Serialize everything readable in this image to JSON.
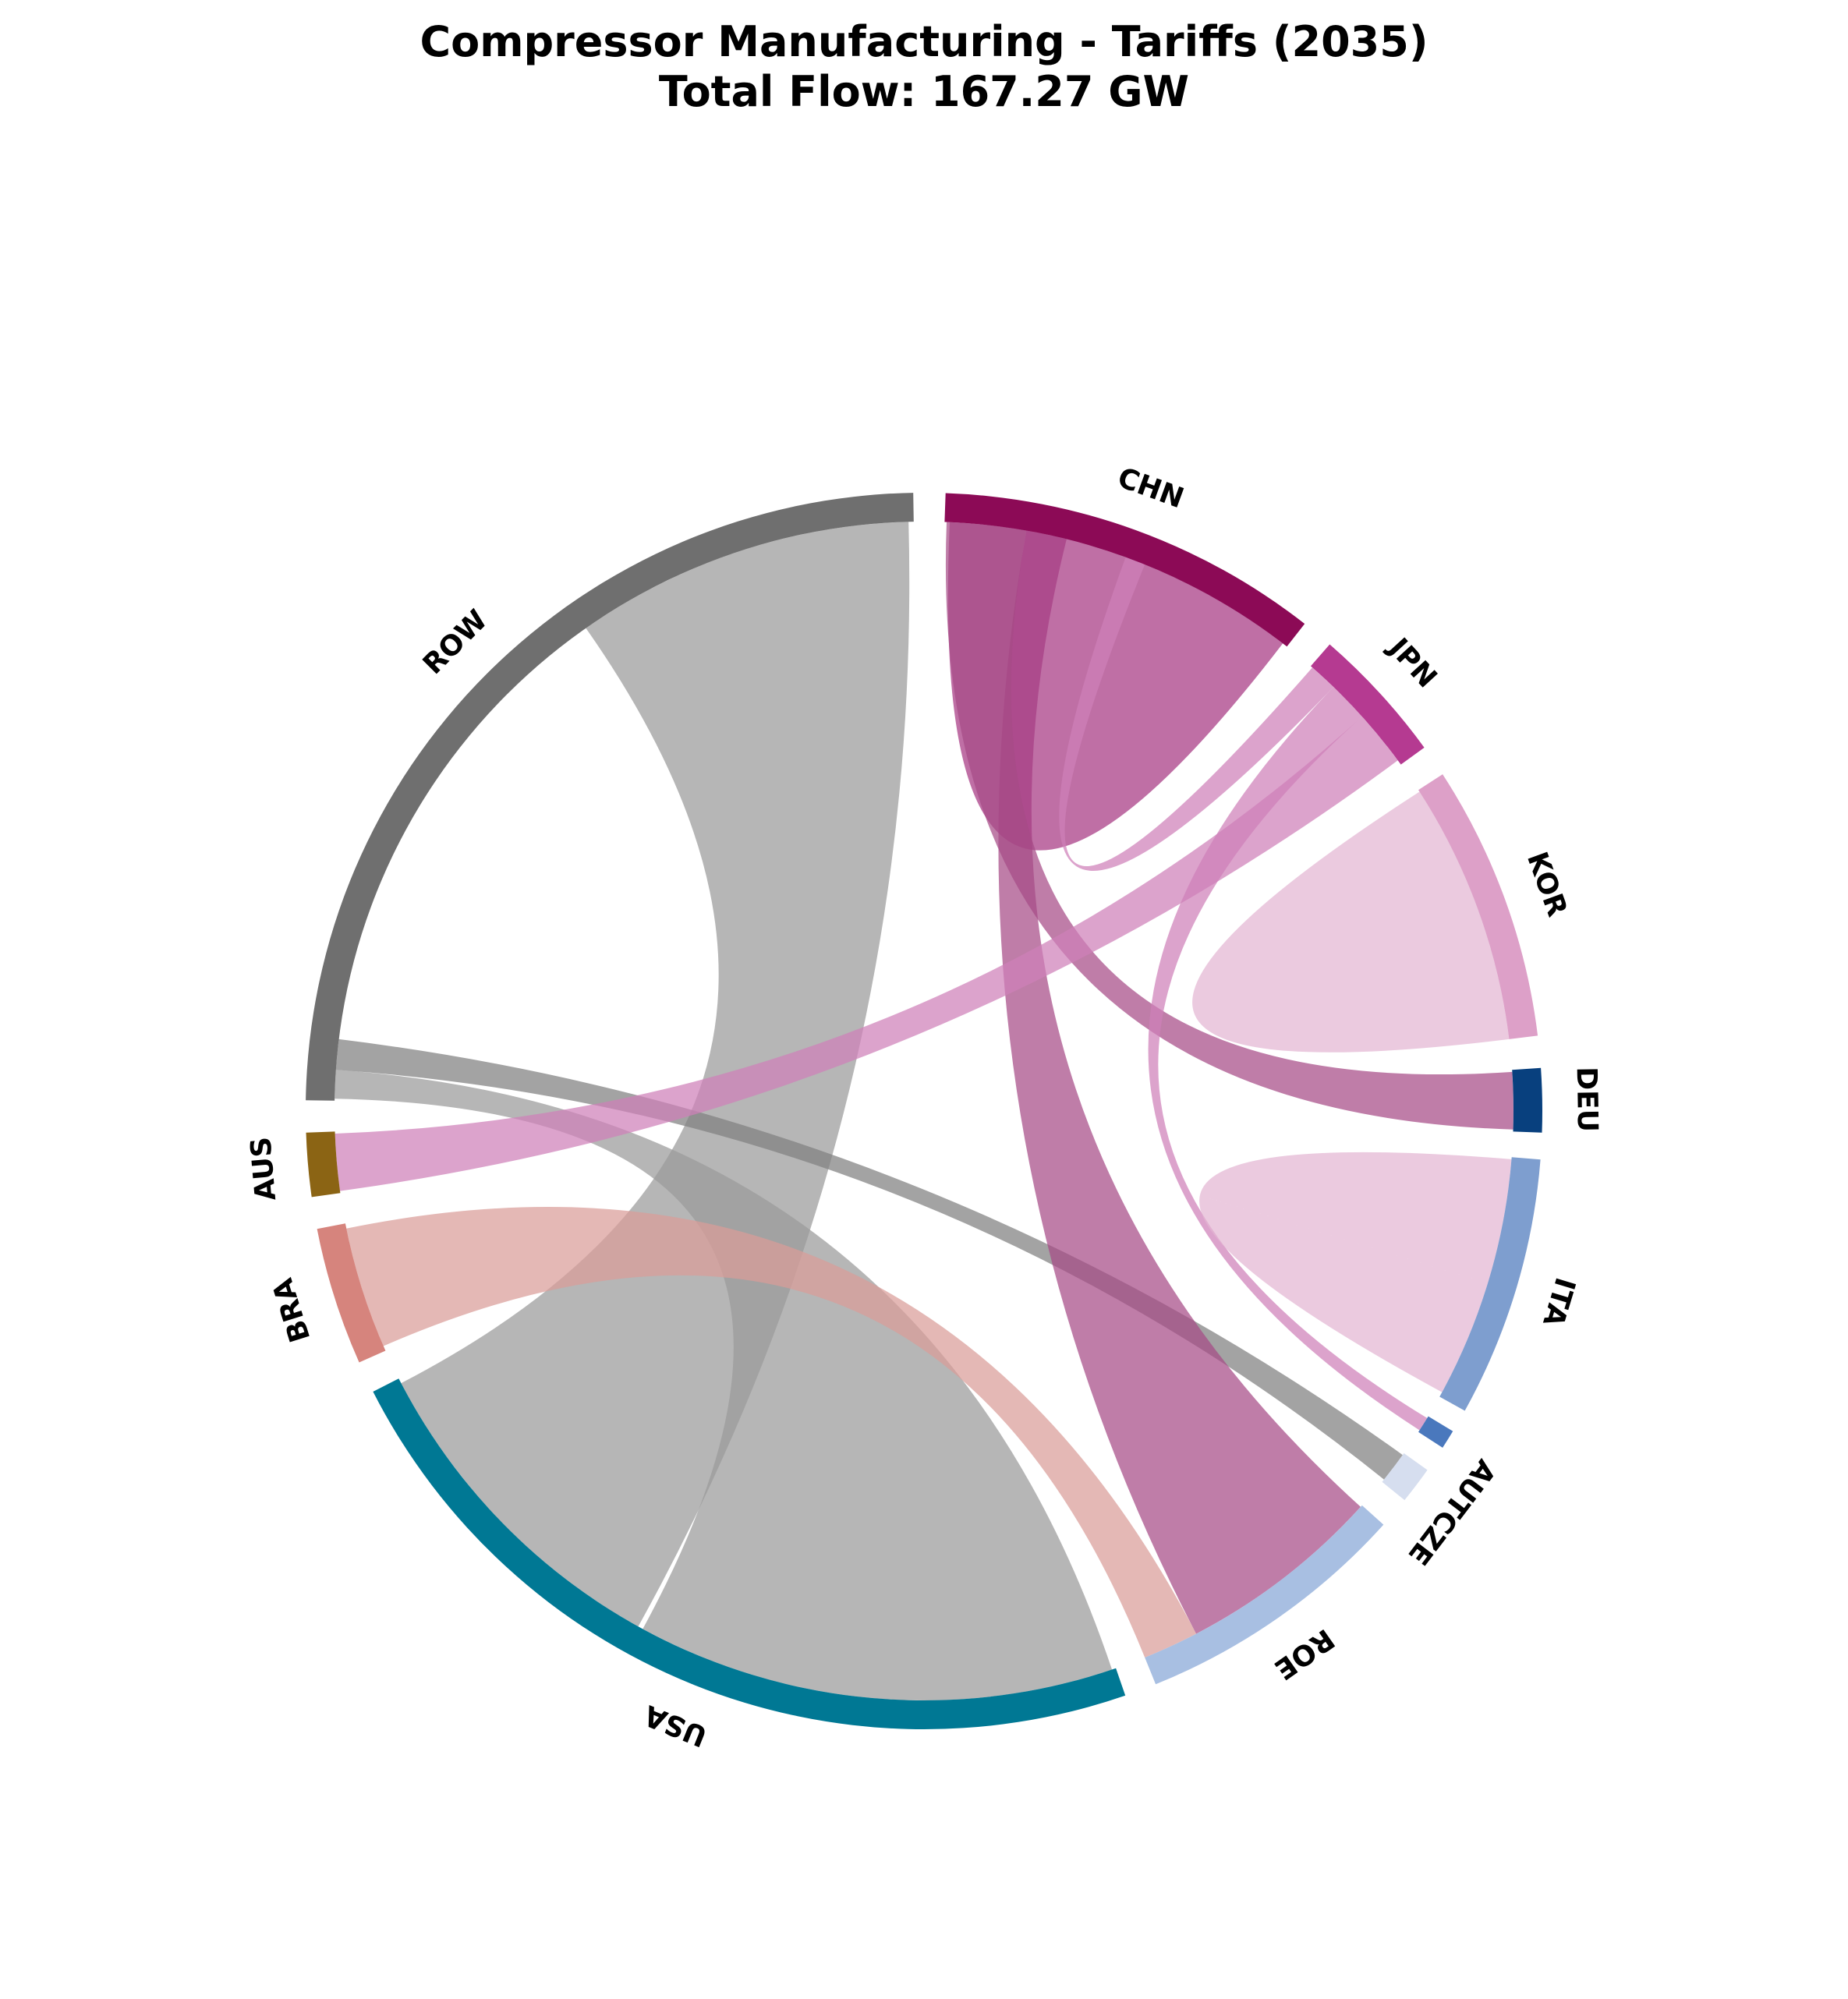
{
  "chart_data": {
    "type": "chord",
    "title": "Compressor Manufacturing - Tariffs (2035)",
    "subtitle": "Total Flow: 167.27 GW",
    "nodes": [
      {
        "id": "ROW",
        "label": "ROW",
        "color": "#6f6f6f",
        "start_deg": 91.0,
        "end_deg": 179.0
      },
      {
        "id": "AUS",
        "label": "AUS",
        "color": "#8b6414",
        "start_deg": 182.0,
        "end_deg": 188.0
      },
      {
        "id": "BRA",
        "label": "BRA",
        "color": "#d6847d",
        "start_deg": 191.0,
        "end_deg": 204.0
      },
      {
        "id": "USA",
        "label": "USA",
        "color": "#007894",
        "start_deg": 207.0,
        "end_deg": 289.0
      },
      {
        "id": "ROE",
        "label": "ROE",
        "color": "#a8bfe2",
        "start_deg": 292.0,
        "end_deg": 318.0
      },
      {
        "id": "AUTCZE",
        "label": "AUTCZE",
        "color": "#d6deef",
        "start_deg": 321.0,
        "end_deg": 324.5
      },
      {
        "id": "ITA2",
        "label": "",
        "color": "#4a78bd",
        "start_deg": 327.0,
        "end_deg": 328.8
      },
      {
        "id": "ITA",
        "label": "ITA",
        "color": "#7e9ecf",
        "start_deg": 331.0,
        "end_deg": 355.5
      },
      {
        "id": "DEU",
        "label": "DEU",
        "color": "#08407e",
        "start_deg": 358.0,
        "end_deg": 364.0
      },
      {
        "id": "KOR",
        "label": "KOR",
        "color": "#dda0c8",
        "start_deg": 367.0,
        "end_deg": 393.0
      },
      {
        "id": "JPN",
        "label": "JPN",
        "color": "#b53a91",
        "start_deg": 396.0,
        "end_deg": 409.0
      },
      {
        "id": "CHN",
        "label": "CHN",
        "color": "#8c0a56",
        "start_deg": 412.0,
        "end_deg": 448.0
      }
    ],
    "flows": [
      {
        "source": "ROW",
        "target": "USA",
        "color": "#9a9a9a",
        "a": [
          91.5,
          125.0
        ],
        "b": [
          207.5,
          241.0
        ]
      },
      {
        "source": "ROW",
        "target": "USA",
        "color": "#9a9a9a",
        "a": [
          176.0,
          178.8
        ],
        "b": [
          241.5,
          288.6
        ]
      },
      {
        "source": "ROW",
        "target": "AUTCZE",
        "color": "#808080",
        "a": [
          173.0,
          176.0
        ],
        "b": [
          321.3,
          324.3
        ]
      },
      {
        "source": "BRA",
        "target": "ROE",
        "color": "#d99c98",
        "a": [
          191.5,
          203.5
        ],
        "b": [
          292.0,
          297.5
        ]
      },
      {
        "source": "CHN",
        "target": "ROE",
        "color": "#a64b87",
        "a": [
          436.0,
          440.0
        ],
        "b": [
          297.5,
          317.8
        ]
      },
      {
        "source": "CHN",
        "target": "CHN",
        "color": "#a63782",
        "a": [
          412.5,
          428.0
        ],
        "b": [
          428.0,
          447.5
        ]
      },
      {
        "source": "CHN",
        "target": "DEU",
        "color": "#a64b87",
        "a": [
          440.0,
          447.8
        ],
        "b": [
          358.2,
          363.8
        ]
      },
      {
        "source": "JPN",
        "target": "AUS",
        "color": "#cf7fb8",
        "a": [
          396.5,
          402.0
        ],
        "b": [
          182.2,
          187.8
        ]
      },
      {
        "source": "JPN",
        "target": "ITA2",
        "color": "#cf7fb8",
        "a": [
          402.0,
          406.0
        ],
        "b": [
          327.2,
          328.6
        ]
      },
      {
        "source": "JPN",
        "target": "CHN",
        "color": "#cf7fb8",
        "a": [
          406.0,
          408.8
        ],
        "b": [
          428.0,
          430.0
        ]
      },
      {
        "source": "KOR",
        "target": "KOR",
        "color": "#e3b5d2",
        "a": [
          367.0,
          377.0
        ],
        "b": [
          377.0,
          392.8
        ]
      },
      {
        "source": "ITA",
        "target": "ITA",
        "color": "#e3b5d2",
        "a": [
          331.5,
          343.0
        ],
        "b": [
          343.0,
          355.3
        ]
      }
    ]
  }
}
